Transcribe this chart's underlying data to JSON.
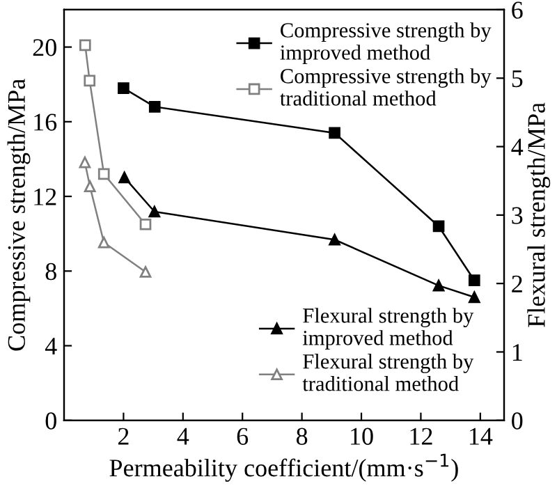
{
  "chart_data": {
    "type": "line",
    "xlabel": "Permeability coefficient/(mm·s$^{−1}$)",
    "ylabel": "Compressive strength/MPa",
    "y2label": "Flexural strength/MPa",
    "xlim": [
      0,
      14.8
    ],
    "xticks": [
      2,
      4,
      6,
      8,
      10,
      12,
      14
    ],
    "ylim": [
      0,
      22
    ],
    "yticks": [
      0,
      4,
      8,
      12,
      16,
      20
    ],
    "y2lim": [
      0,
      6
    ],
    "y2ticks": [
      0,
      1,
      2,
      3,
      4,
      5,
      6
    ],
    "legend": "right",
    "grid": false,
    "line_style": "solid",
    "series": [
      {
        "name": "Compressive strength by improved method",
        "color": "#000000",
        "marker": "square",
        "x": [
          2.0,
          3.05,
          9.1,
          12.6,
          13.8
        ],
        "values": [
          17.8,
          16.8,
          15.4,
          10.4,
          7.5
        ]
      },
      {
        "name": "Compressive strength by traditional method",
        "color": "#808080",
        "marker": "square",
        "x": [
          0.71,
          0.86,
          1.34,
          2.74
        ],
        "values": [
          20.1,
          18.2,
          13.2,
          10.5
        ]
      },
      {
        "name": "Flexural strength by improved method",
        "color": "#000000",
        "marker": "triangle",
        "axis": "y2",
        "x": [
          2.03,
          3.04,
          9.1,
          12.6,
          13.8
        ],
        "values": [
          3.55,
          3.05,
          2.64,
          1.97,
          1.8
        ]
      },
      {
        "name": "Flexural strength by traditional method",
        "color": "#808080",
        "marker": "triangle",
        "axis": "y2",
        "x": [
          0.7,
          0.87,
          1.34,
          2.74
        ],
        "values": [
          3.77,
          3.42,
          2.6,
          2.17
        ]
      }
    ]
  }
}
